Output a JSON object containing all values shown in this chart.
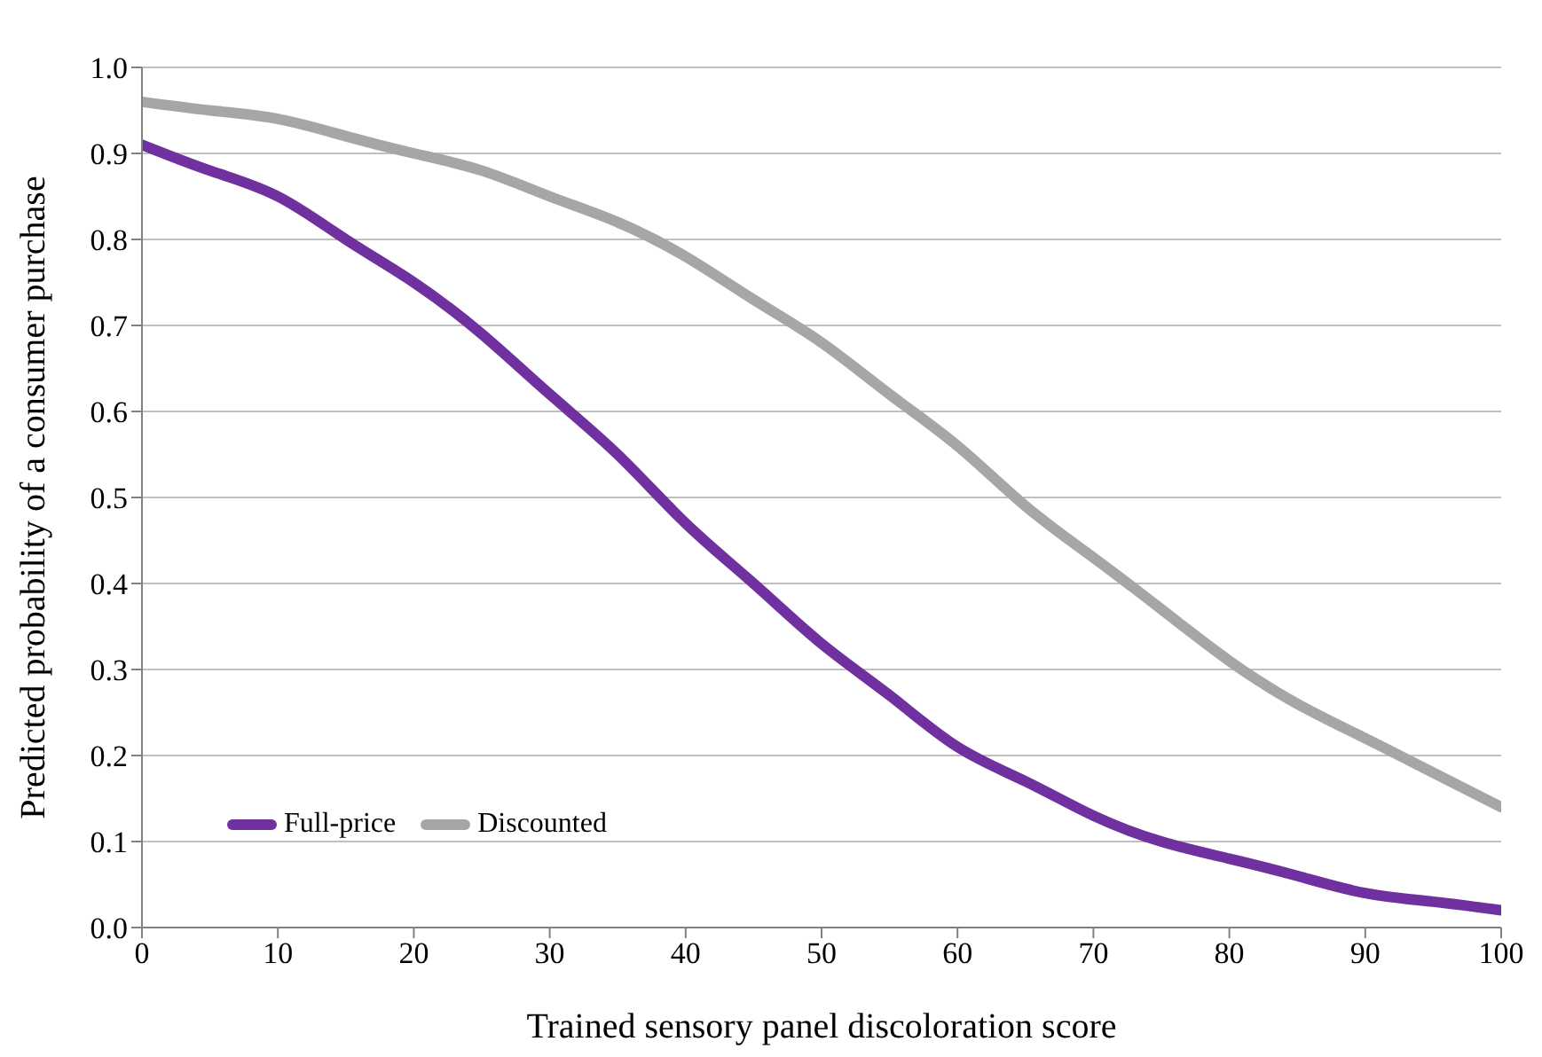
{
  "chart_data": {
    "type": "line",
    "xlabel": "Trained sensory panel discoloration score",
    "ylabel": "Predicted probability of a consumer purchase",
    "x": [
      0,
      5,
      10,
      15,
      20,
      25,
      30,
      35,
      40,
      45,
      50,
      55,
      60,
      65,
      70,
      75,
      80,
      85,
      90,
      95,
      100
    ],
    "series": [
      {
        "name": "Full-price",
        "color": "#7030a0",
        "values": [
          0.91,
          0.88,
          0.85,
          0.8,
          0.75,
          0.69,
          0.62,
          0.55,
          0.47,
          0.4,
          0.33,
          0.27,
          0.21,
          0.17,
          0.13,
          0.1,
          0.08,
          0.06,
          0.04,
          0.03,
          0.02
        ]
      },
      {
        "name": "Discounted",
        "color": "#a6a6a6",
        "values": [
          0.96,
          0.95,
          0.94,
          0.92,
          0.9,
          0.88,
          0.85,
          0.82,
          0.78,
          0.73,
          0.68,
          0.62,
          0.56,
          0.49,
          0.43,
          0.37,
          0.31,
          0.26,
          0.22,
          0.18,
          0.14
        ]
      }
    ],
    "xlim": [
      0,
      100
    ],
    "xticks": [
      0,
      10,
      20,
      30,
      40,
      50,
      60,
      70,
      80,
      90,
      100
    ],
    "ylim": [
      0,
      1
    ],
    "yticks": [
      {
        "value": 0,
        "label": "0.0"
      },
      {
        "value": 0.1,
        "label": "0.1"
      },
      {
        "value": 0.2,
        "label": "0.2"
      },
      {
        "value": 0.3,
        "label": "0.3"
      },
      {
        "value": 0.4,
        "label": "0.4"
      },
      {
        "value": 0.5,
        "label": "0.5"
      },
      {
        "value": 0.6,
        "label": "0.6"
      },
      {
        "value": 0.7,
        "label": "0.7"
      },
      {
        "value": 0.8,
        "label": "0.8"
      },
      {
        "value": 0.9,
        "label": "0.9"
      },
      {
        "value": 1,
        "label": "1.0"
      }
    ],
    "grid": "y",
    "legend": "bottom left",
    "marker": "none",
    "line_style": "solid"
  }
}
